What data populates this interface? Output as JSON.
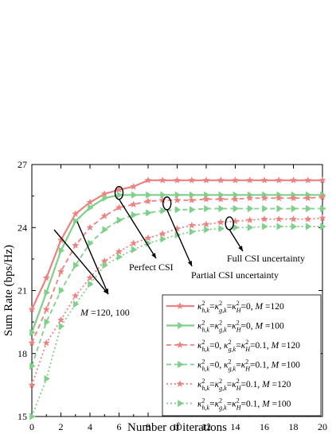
{
  "chart_data": {
    "type": "line",
    "xlabel": "Number of iterations",
    "ylabel": "Sum Rate (bps/Hz)",
    "xlim": [
      0,
      20
    ],
    "ylim": [
      15,
      27
    ],
    "xticks": [
      0,
      2,
      4,
      6,
      8,
      10,
      12,
      14,
      16,
      18,
      20
    ],
    "yticks": [
      15,
      18,
      21,
      24,
      27
    ],
    "grid": false,
    "legend_position": "bottom-right",
    "x": [
      0,
      1,
      2,
      3,
      4,
      5,
      6,
      7,
      8,
      9,
      10,
      11,
      12,
      13,
      14,
      15,
      16,
      17,
      18,
      19,
      20
    ],
    "series": [
      {
        "legend": {
          "pre": "κ",
          "sub": [
            "h,k",
            "g,k",
            "H"
          ],
          "vals": [
            "=",
            "=",
            "=0"
          ],
          "m": "120"
        },
        "color": "#f08080",
        "dash": "solid",
        "marker": "star",
        "values": [
          20.1,
          21.6,
          23.4,
          24.65,
          25.2,
          25.6,
          25.8,
          25.95,
          26.25,
          26.25,
          26.25,
          26.25,
          26.25,
          26.25,
          26.25,
          26.25,
          26.25,
          26.25,
          26.25,
          26.25,
          26.25
        ]
      },
      {
        "legend": {
          "pre": "κ",
          "sub": [
            "h,k",
            "g,k",
            "H"
          ],
          "vals": [
            "=",
            "=",
            "=0"
          ],
          "m": "100"
        },
        "color": "#7ed08a",
        "dash": "solid",
        "marker": "triangle-right",
        "values": [
          19.0,
          20.9,
          22.9,
          24.3,
          24.95,
          25.4,
          25.55,
          25.55,
          25.55,
          25.55,
          25.55,
          25.55,
          25.55,
          25.55,
          25.55,
          25.55,
          25.55,
          25.55,
          25.55,
          25.55,
          25.55
        ]
      },
      {
        "legend": {
          "pre": "κ",
          "sub": [
            "h,k",
            "g,k",
            "H"
          ],
          "vals": [
            "=0, ",
            "=",
            "=0.1"
          ],
          "m": "120"
        },
        "color": "#f08080",
        "dash": "dashed",
        "marker": "star",
        "values": [
          18.5,
          20.1,
          21.9,
          23.15,
          24.0,
          24.55,
          24.95,
          25.1,
          25.25,
          25.3,
          25.3,
          25.3,
          25.35,
          25.35,
          25.35,
          25.4,
          25.4,
          25.4,
          25.4,
          25.4,
          25.45
        ]
      },
      {
        "legend": {
          "pre": "κ",
          "sub": [
            "h,k",
            "g,k",
            "H"
          ],
          "vals": [
            "=0, ",
            "=",
            "=0.1"
          ],
          "m": "100"
        },
        "color": "#7ed08a",
        "dash": "dashed",
        "marker": "triangle-right",
        "values": [
          17.4,
          19.5,
          21.0,
          22.2,
          23.25,
          23.9,
          24.35,
          24.6,
          24.7,
          24.8,
          24.85,
          24.85,
          24.9,
          24.9,
          24.9,
          24.9,
          24.9,
          24.9,
          24.9,
          24.9,
          24.9
        ]
      },
      {
        "legend": {
          "pre": "κ",
          "sub": [
            "h,k",
            "g,k",
            "H"
          ],
          "vals": [
            "=",
            "=",
            "=0.1"
          ],
          "m": "120"
        },
        "color": "#f08080",
        "dash": "dotted",
        "marker": "star",
        "values": [
          16.5,
          18.5,
          19.6,
          20.75,
          21.6,
          22.4,
          22.85,
          23.25,
          23.5,
          23.7,
          23.95,
          24.1,
          24.15,
          24.25,
          24.3,
          24.35,
          24.4,
          24.4,
          24.4,
          24.4,
          24.45
        ]
      },
      {
        "legend": {
          "pre": "κ",
          "sub": [
            "h,k",
            "g,k",
            "H"
          ],
          "vals": [
            "=",
            "=",
            "=0.1"
          ],
          "m": "100"
        },
        "color": "#7ed08a",
        "dash": "dotted",
        "marker": "triangle-right",
        "values": [
          15.0,
          16.8,
          19.3,
          20.35,
          21.3,
          22.2,
          22.6,
          22.95,
          23.25,
          23.45,
          23.65,
          23.8,
          23.9,
          23.95,
          24.0,
          24.0,
          24.05,
          24.05,
          24.05,
          24.05,
          24.05
        ]
      }
    ],
    "annotations": [
      {
        "text": "Perfect CSI",
        "at_x": 6,
        "at_y": 25.65
      },
      {
        "text": "Partial CSI uncertainty",
        "at_x": 9.3,
        "at_y": 25.15
      },
      {
        "text": "Full CSI uncertainty",
        "at_x": 13.6,
        "at_y": 24.2
      },
      {
        "text": "M =120, 100",
        "italic_part": "M",
        "rest": " =120, 100"
      }
    ]
  }
}
